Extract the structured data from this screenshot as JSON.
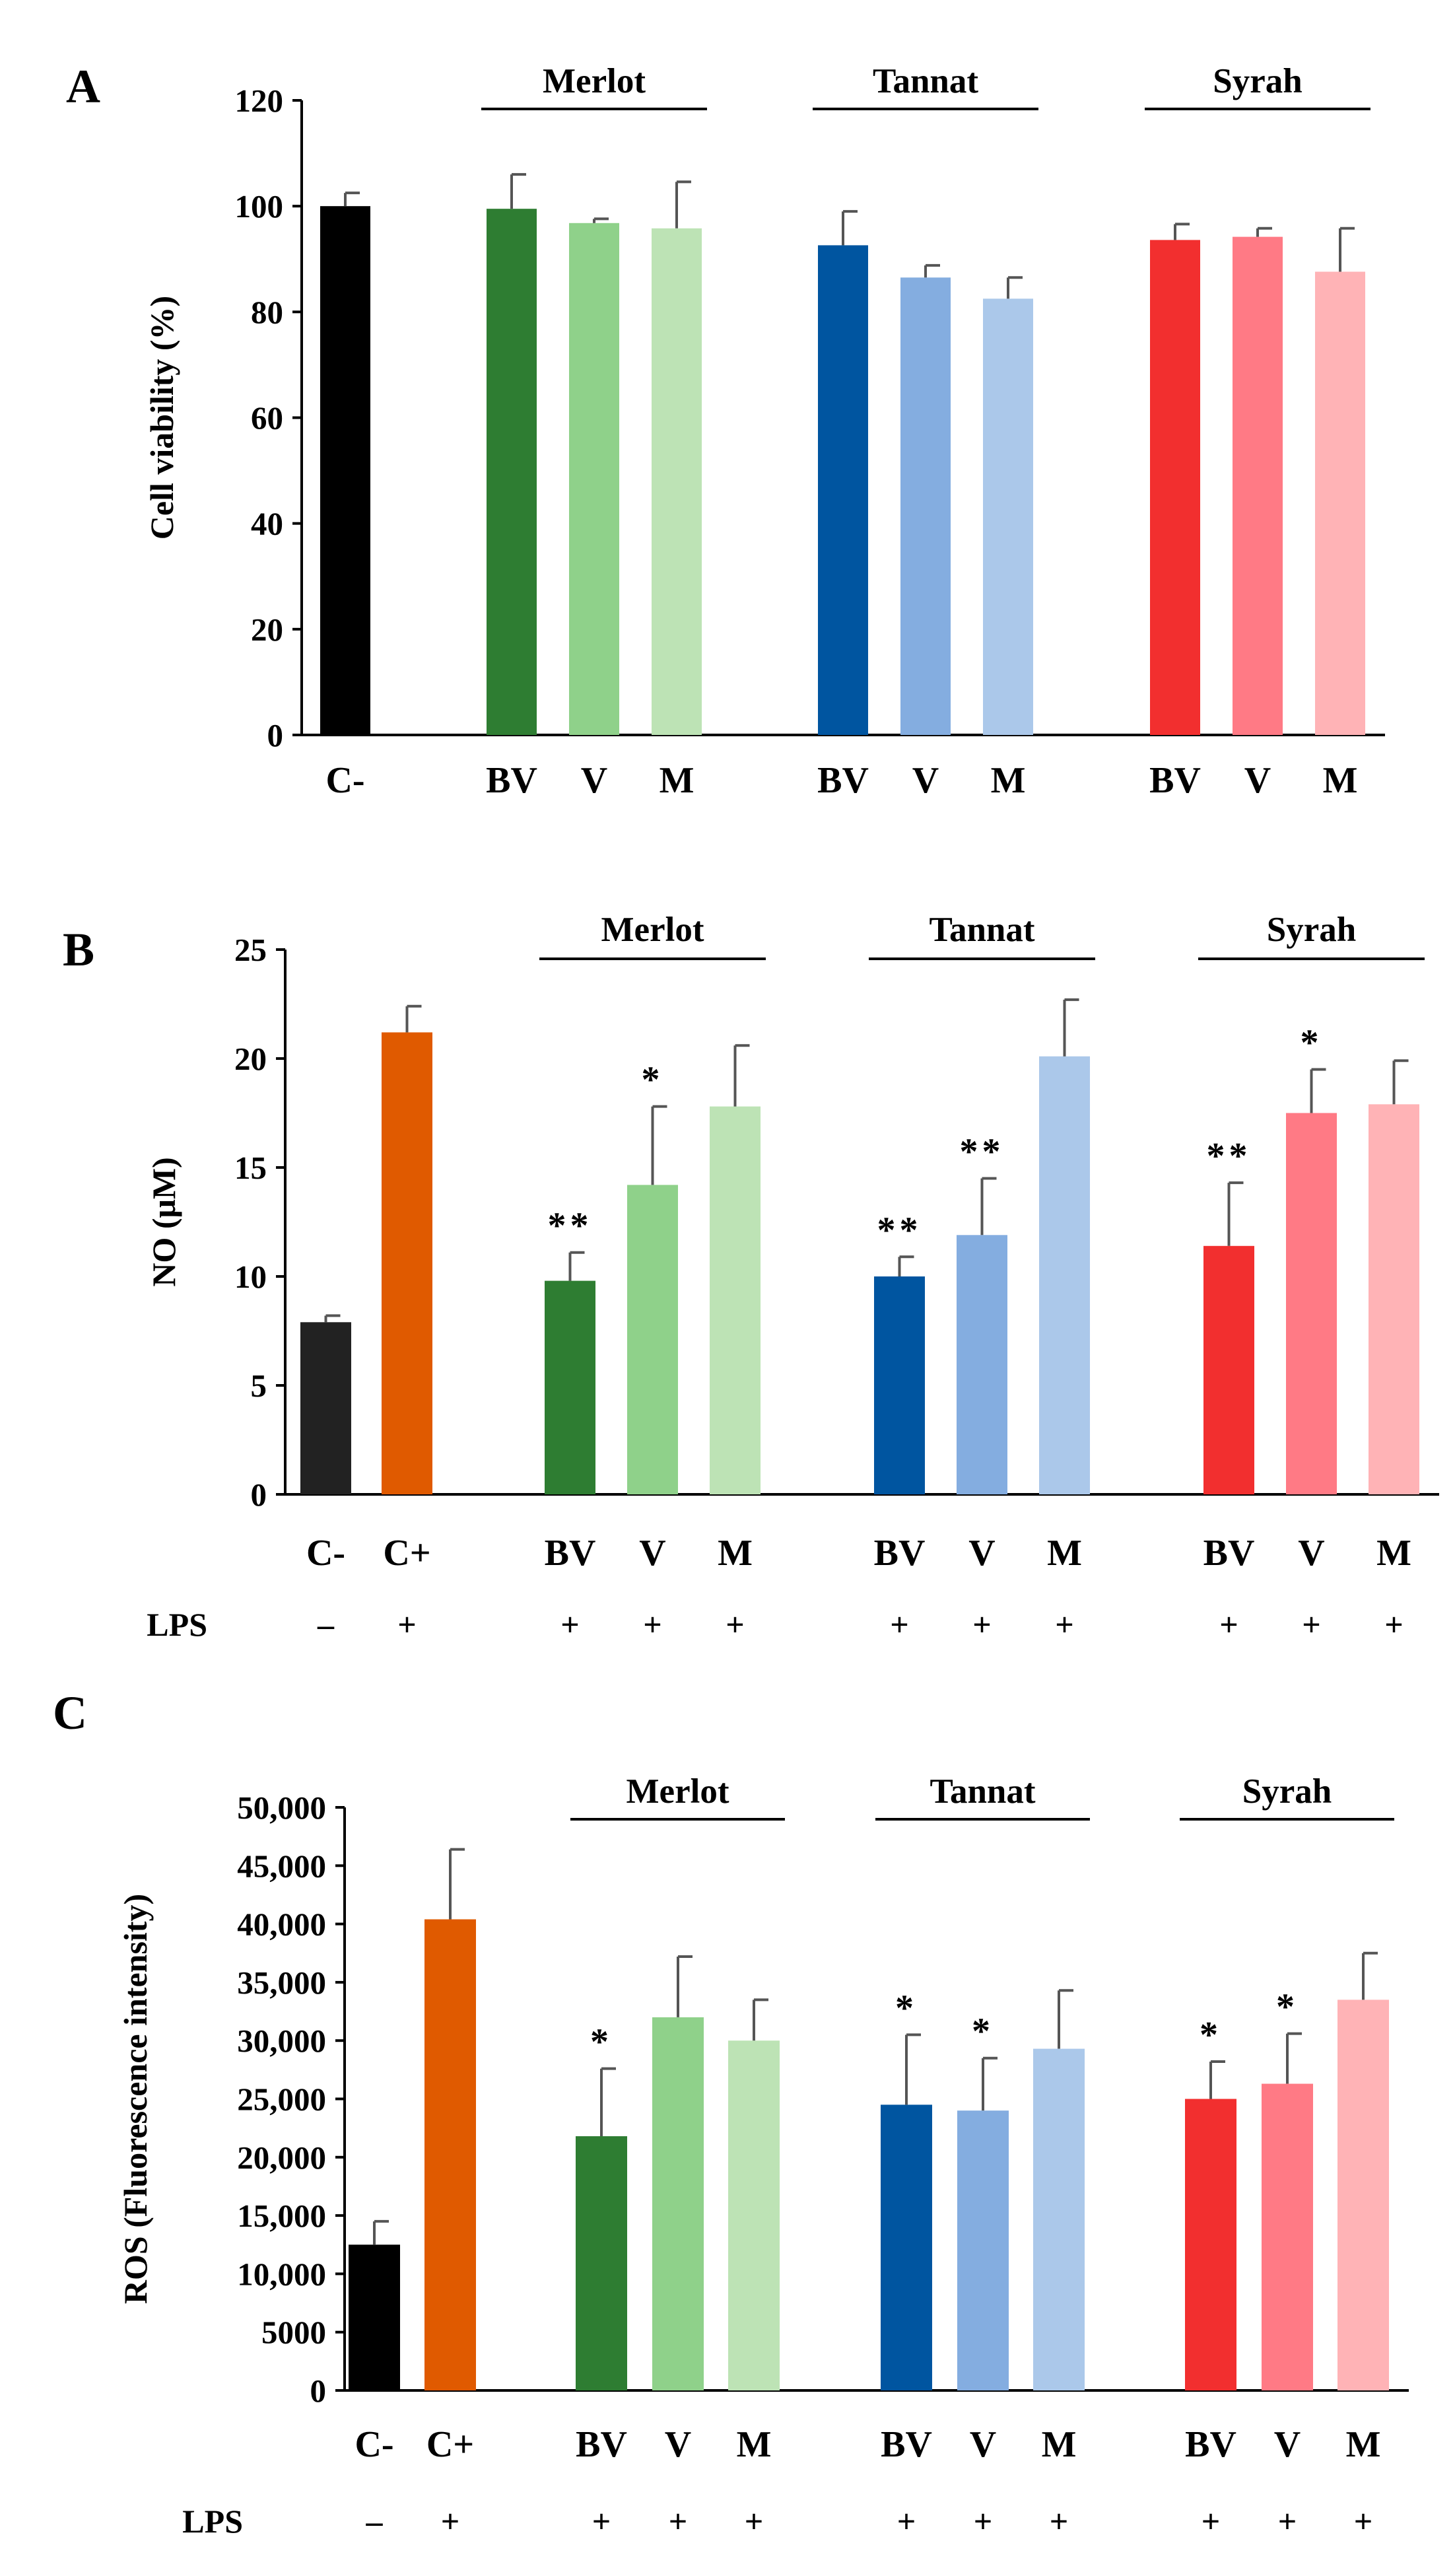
{
  "chart_data": [
    {
      "type": "bar",
      "panel": "A",
      "title": "",
      "xlabel": "",
      "ylabel": "Cell viability (%)",
      "ylim": [
        0,
        120
      ],
      "yticks": [
        "0",
        "20",
        "40",
        "60",
        "80",
        "100",
        "120"
      ],
      "categories": [
        "C-",
        "BV",
        "V",
        "M",
        "BV",
        "V",
        "M",
        "BV",
        "V",
        "M"
      ],
      "values": [
        100,
        99.5,
        96.8,
        95.8,
        92.6,
        86.5,
        82.5,
        93.6,
        94.2,
        87.6
      ],
      "errors": [
        2.5,
        6.5,
        0.8,
        8.8,
        6.4,
        2.3,
        4.0,
        3.0,
        1.6,
        8.2
      ],
      "significance": [
        "",
        "",
        "",
        "",
        "",
        "",
        "",
        "",
        "",
        ""
      ],
      "colors": [
        "#000000",
        "#2e7d32",
        "#8fd18a",
        "#bde3b5",
        "#0055a0",
        "#84ade0",
        "#abc8ea",
        "#f22f2f",
        "#ff7a85",
        "#ffb3b6"
      ],
      "groups": [
        "Merlot",
        "Tannat",
        "Syrah"
      ],
      "lps": []
    },
    {
      "type": "bar",
      "panel": "B",
      "title": "",
      "xlabel": "",
      "ylabel": "NO (μM)",
      "ylim": [
        0,
        25
      ],
      "yticks": [
        "0",
        "5",
        "10",
        "15",
        "20",
        "25"
      ],
      "categories": [
        "C-",
        "C+",
        "BV",
        "V",
        "M",
        "BV",
        "V",
        "M",
        "BV",
        "V",
        "M"
      ],
      "values": [
        7.9,
        21.2,
        9.8,
        14.2,
        17.8,
        10.0,
        11.9,
        20.1,
        11.4,
        17.5,
        17.9
      ],
      "errors": [
        0.3,
        1.2,
        1.3,
        3.6,
        2.8,
        0.9,
        2.6,
        2.6,
        2.9,
        2.0,
        2.0
      ],
      "significance": [
        "",
        "",
        "**",
        "*",
        "",
        "**",
        "**",
        "",
        "**",
        "*",
        ""
      ],
      "colors": [
        "#222222",
        "#e05a00",
        "#2e7d32",
        "#8fd18a",
        "#bde3b5",
        "#0055a0",
        "#84ade0",
        "#abc8ea",
        "#f22f2f",
        "#ff7a85",
        "#ffb3b6"
      ],
      "groups": [
        "Merlot",
        "Tannat",
        "Syrah"
      ],
      "lps": [
        "–",
        "+",
        "+",
        "+",
        "+",
        "+",
        "+",
        "+",
        "+",
        "+",
        "+"
      ],
      "lps_label": "LPS"
    },
    {
      "type": "bar",
      "panel": "C",
      "title": "",
      "xlabel": "",
      "ylabel": "ROS (Fluorescence intensity)",
      "ylim": [
        0,
        50000
      ],
      "yticks": [
        "0",
        "5000",
        "10,000",
        "15,000",
        "20,000",
        "25,000",
        "30,000",
        "35,000",
        "40,000",
        "45,000",
        "50,000"
      ],
      "categories": [
        "C-",
        "C+",
        "BV",
        "V",
        "M",
        "BV",
        "V",
        "M",
        "BV",
        "V",
        "M"
      ],
      "values": [
        12500,
        40400,
        21800,
        32000,
        30000,
        24500,
        24000,
        29300,
        25000,
        26300,
        33500
      ],
      "errors": [
        2000,
        6000,
        5800,
        5200,
        3500,
        6000,
        4500,
        5000,
        3200,
        4300,
        4000
      ],
      "significance": [
        "",
        "",
        "*",
        "",
        "",
        "*",
        "*",
        "",
        "*",
        "*",
        ""
      ],
      "colors": [
        "#000000",
        "#e05a00",
        "#2e7d32",
        "#8fd18a",
        "#bde3b5",
        "#0055a0",
        "#84ade0",
        "#abc8ea",
        "#f22f2f",
        "#ff7a85",
        "#ffb3b6"
      ],
      "groups": [
        "Merlot",
        "Tannat",
        "Syrah"
      ],
      "lps": [
        "–",
        "+",
        "+",
        "+",
        "+",
        "+",
        "+",
        "+",
        "+",
        "+",
        "+"
      ],
      "lps_label": "LPS"
    }
  ]
}
